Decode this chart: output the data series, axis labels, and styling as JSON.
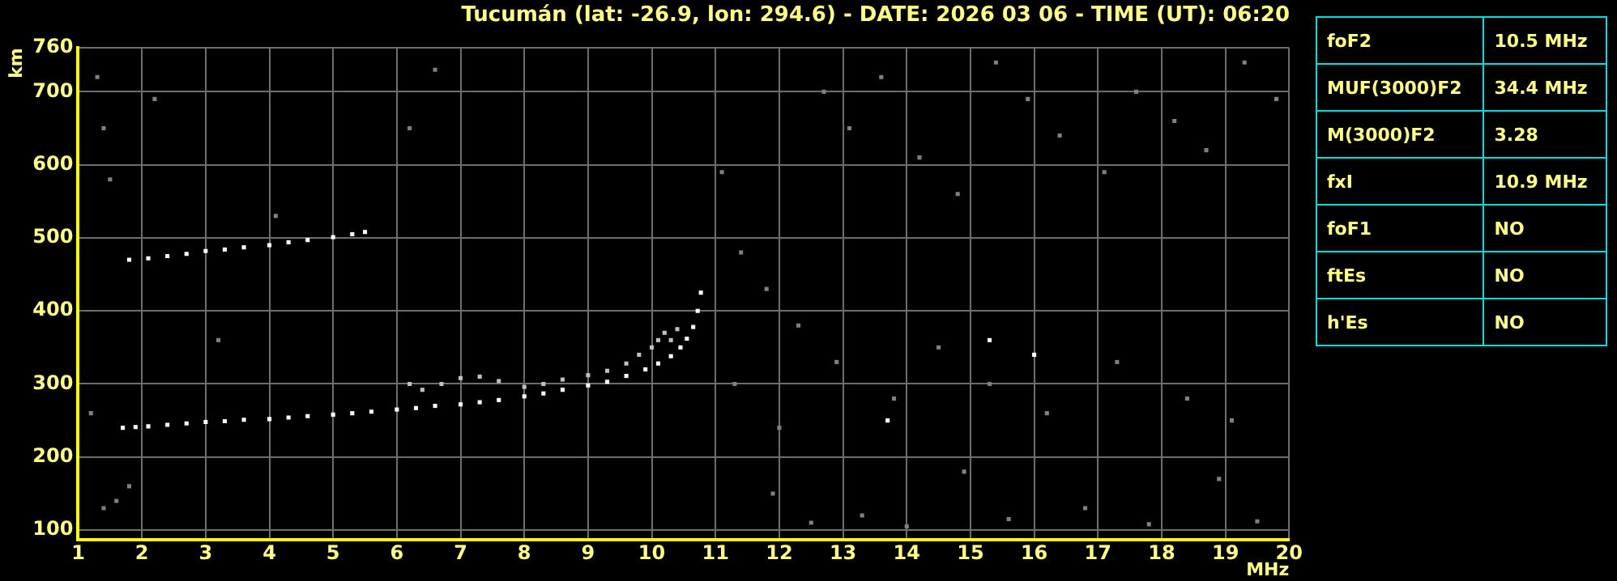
{
  "chart_data": [
    {
      "type": "scatter",
      "title": "Tucumán (lat: -26.9, lon: 294.6) - DATE: 2026 03 06 - TIME (UT): 06:20",
      "xlabel": "MHz",
      "ylabel": "km",
      "xlim": [
        1,
        20
      ],
      "xticks": [
        1,
        2,
        3,
        4,
        5,
        6,
        7,
        8,
        9,
        10,
        11,
        12,
        13,
        14,
        15,
        16,
        17,
        18,
        19,
        20
      ],
      "ylim": [
        87,
        760
      ],
      "yticks": [
        100,
        200,
        300,
        400,
        500,
        600,
        700,
        760
      ],
      "grid": true,
      "marker": "square",
      "legend": false,
      "series": [
        {
          "color": "#ffffff",
          "x": [
            1.7,
            1.9,
            2.1,
            2.4,
            2.7,
            3,
            3.3,
            3.6,
            4,
            4.3,
            4.6,
            5,
            5.3,
            5.6,
            6,
            6.3,
            6.6,
            7,
            7.3,
            7.6,
            8,
            8.3,
            8.6,
            9,
            9.3,
            9.6,
            9.9,
            10.1,
            10.3,
            10.45,
            10.55,
            10.65,
            10.72,
            10.77
          ],
          "values": [
            240,
            241,
            242,
            244,
            246,
            248,
            249,
            251,
            252,
            254,
            256,
            258,
            260,
            262,
            265,
            267,
            270,
            272,
            275,
            278,
            283,
            287,
            292,
            298,
            303,
            311,
            320,
            328,
            338,
            350,
            362,
            378,
            400,
            425
          ]
        },
        {
          "color": "#c0c0c0",
          "x": [
            6.2,
            6.4,
            6.7,
            7,
            7.3,
            7.6,
            8,
            8.3,
            8.6,
            9,
            9.3,
            9.6,
            9.8,
            10,
            10.1,
            10.2,
            10.3,
            10.4
          ],
          "values": [
            300,
            292,
            300,
            308,
            310,
            304,
            296,
            300,
            306,
            312,
            318,
            328,
            340,
            350,
            360,
            370,
            360,
            375
          ]
        },
        {
          "color": "#ffffff",
          "x": [
            1.8,
            2.1,
            2.4,
            2.7,
            3,
            3.3,
            3.6,
            4,
            4.3,
            4.6,
            5,
            5.3,
            5.5
          ],
          "values": [
            470,
            472,
            475,
            478,
            482,
            484,
            487,
            490,
            494,
            497,
            501,
            505,
            508
          ]
        },
        {
          "color": "#808080",
          "x": [
            1.3,
            1.4,
            1.6,
            1.8,
            2.2,
            1.5,
            1.4,
            1.2,
            3.2,
            4.1,
            6.6,
            6.2,
            11.1,
            11.4,
            11.8,
            12.3,
            12.7,
            13.1,
            13.6,
            14.2,
            14.8,
            15.4,
            15.9,
            16.4,
            17.1,
            17.6,
            18.2,
            18.7,
            19.3,
            19.8,
            11.3,
            12,
            12.9,
            13.8,
            14.5,
            15.3,
            16.2,
            17.3,
            18.4,
            19.1,
            11.9,
            13.3,
            14.9,
            16.8,
            18.9,
            12.5,
            14,
            15.6,
            17.8,
            19.5
          ],
          "values": [
            720,
            650,
            140,
            160,
            690,
            580,
            130,
            260,
            360,
            530,
            730,
            650,
            590,
            480,
            430,
            380,
            700,
            650,
            720,
            610,
            560,
            740,
            690,
            640,
            590,
            700,
            660,
            620,
            740,
            690,
            300,
            240,
            330,
            280,
            350,
            300,
            260,
            330,
            280,
            250,
            150,
            120,
            180,
            130,
            170,
            110,
            105,
            115,
            108,
            112
          ]
        },
        {
          "color": "#ffffff",
          "x": [
            15.3,
            16,
            13.7
          ],
          "values": [
            360,
            340,
            250
          ]
        }
      ]
    },
    {
      "type": "other",
      "categories": [
        "foF2",
        "MUF(3000)F2",
        "M(3000)F2",
        "fxI",
        "foF1",
        "ftEs",
        "h'Es"
      ],
      "value_labels": [
        "10.5 MHz",
        "34.4 MHz",
        "3.28",
        "10.9 MHz",
        "NO",
        "NO",
        "NO"
      ]
    }
  ]
}
